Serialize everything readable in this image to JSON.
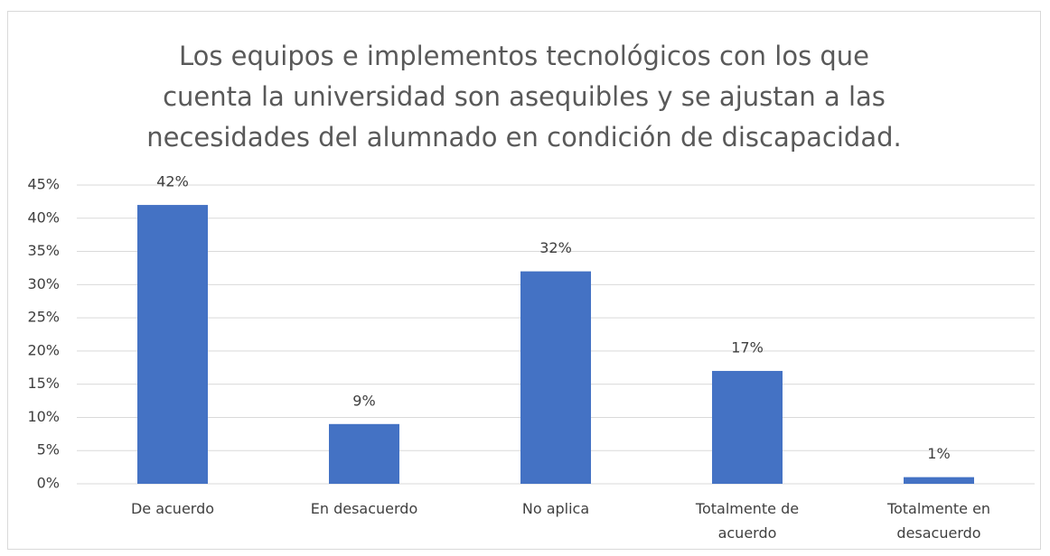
{
  "chart_data": {
    "type": "bar",
    "title": "Los equipos e implementos tecnológicos con los que cuenta la universidad son asequibles y se ajustan a las necesidades del alumnado en condición de discapacidad.",
    "categories": [
      "De acuerdo",
      "En desacuerdo",
      "No aplica",
      "Totalmente de acuerdo",
      "Totalmente en desacuerdo"
    ],
    "values": [
      42,
      9,
      32,
      17,
      1
    ],
    "value_labels": [
      "42%",
      "9%",
      "32%",
      "17%",
      "1%"
    ],
    "color": "#4472c4",
    "ylim": [
      0,
      45
    ],
    "yticks": [
      {
        "value": 0,
        "label": "0%"
      },
      {
        "value": 5,
        "label": "5%"
      },
      {
        "value": 10,
        "label": "10%"
      },
      {
        "value": 15,
        "label": "15%"
      },
      {
        "value": 20,
        "label": "20%"
      },
      {
        "value": 25,
        "label": "25%"
      },
      {
        "value": 30,
        "label": "30%"
      },
      {
        "value": 35,
        "label": "35%"
      },
      {
        "value": 40,
        "label": "40%"
      },
      {
        "value": 45,
        "label": "45%"
      }
    ],
    "grid": true
  }
}
